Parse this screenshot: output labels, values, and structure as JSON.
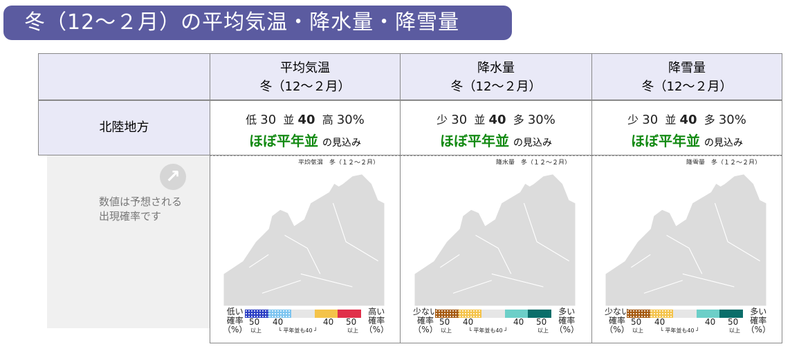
{
  "title": "冬（12〜２月）の平均気温・降水量・降雪量",
  "region": "北陸地方",
  "note": {
    "line1": "数値は予想される",
    "line2": "出現確率です",
    "icon": "arrow-up-right-icon"
  },
  "columns": [
    {
      "name": "平均気温",
      "period": "冬（12〜２月）",
      "low_label": "低",
      "low": "30",
      "mid_label": "並",
      "mid": "40",
      "high_label": "高",
      "high": "30%",
      "verdict": "ほぼ平年並",
      "verdict_suffix": "の見込み",
      "map_title": "平均気温　冬（１２〜２月）",
      "legend": {
        "left": [
          "低い",
          "確率",
          "（%）"
        ],
        "right": [
          "高い",
          "確率",
          "（%）"
        ],
        "colors": [
          "#2b3fc4",
          "#7cc4f0",
          "#e6e6e6",
          "#f4c34a",
          "#e0304a"
        ]
      }
    },
    {
      "name": "降水量",
      "period": "冬（12〜２月）",
      "low_label": "少",
      "low": "30",
      "mid_label": "並",
      "mid": "40",
      "high_label": "多",
      "high": "30%",
      "verdict": "ほぼ平年並",
      "verdict_suffix": "の見込み",
      "map_title": "降水量　冬（１２〜２月）",
      "legend": {
        "left": [
          "少ない",
          "確率",
          "（%）"
        ],
        "right": [
          "多い",
          "確率",
          "（%）"
        ],
        "colors": [
          "#a55a10",
          "#f4c34a",
          "#e6e6e6",
          "#6ccfc8",
          "#0a6e6a"
        ]
      }
    },
    {
      "name": "降雪量",
      "period": "冬（12〜２月）",
      "low_label": "少",
      "low": "30",
      "mid_label": "並",
      "mid": "40",
      "high_label": "多",
      "high": "30%",
      "verdict": "ほぼ平年並",
      "verdict_suffix": "の見込み",
      "map_title": "降雪量　冬（１２〜２月）",
      "legend": {
        "left": [
          "少ない",
          "確率",
          "（%）"
        ],
        "right": [
          "多い",
          "確率",
          "（%）"
        ],
        "colors": [
          "#a55a10",
          "#f4c34a",
          "#e6e6e6",
          "#6ccfc8",
          "#0a6e6a"
        ]
      }
    }
  ],
  "legend_ticks": {
    "t50": "50",
    "t40": "40",
    "above": "以上",
    "normal": "└ 平年並も40 ┘"
  }
}
